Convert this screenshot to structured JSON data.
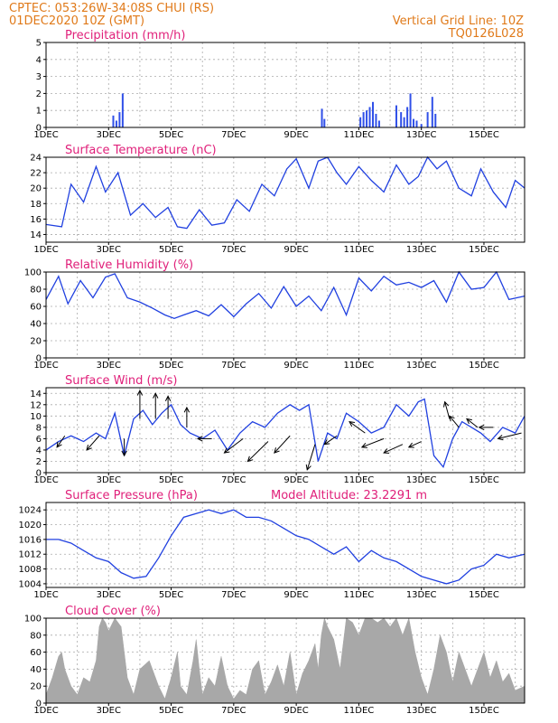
{
  "header": {
    "line1": "CPTEC:   053:26W-34:08S   CHUI (RS)",
    "line2": "01DEC2020 10Z (GMT)",
    "right1": "Vertical Grid Line: 10Z",
    "right2": "TQ0126L028"
  },
  "x_labels": [
    "1DEC",
    "3DEC",
    "5DEC",
    "7DEC",
    "9DEC",
    "11DEC",
    "13DEC",
    "15DEC"
  ],
  "colors": {
    "line": "#2040e0",
    "bar": "#3050e8",
    "cloud": "#a8a8a8",
    "title": "#e0207a",
    "header": "#e07a1a"
  },
  "chart_data": [
    {
      "id": "precip",
      "type": "bar",
      "title": "Precipitation (mm/h)",
      "ylim": [
        0,
        5
      ],
      "yticks": [
        0,
        1,
        2,
        3,
        4,
        5
      ],
      "xlim_days": [
        1,
        16.3
      ],
      "x": [
        3.15,
        3.25,
        3.35,
        3.45,
        9.82,
        9.9,
        11.05,
        11.15,
        11.25,
        11.35,
        11.45,
        11.55,
        11.65,
        12.2,
        12.35,
        12.45,
        12.55,
        12.65,
        12.75,
        12.85,
        13.0,
        13.2,
        13.35,
        13.45
      ],
      "values": [
        0.7,
        0.4,
        0.9,
        2.0,
        1.1,
        0.5,
        0.6,
        0.9,
        1.0,
        1.2,
        1.5,
        0.8,
        0.4,
        1.3,
        0.9,
        0.6,
        1.2,
        2.0,
        0.5,
        0.4,
        0.2,
        0.9,
        1.8,
        0.8
      ]
    },
    {
      "id": "temp",
      "type": "line",
      "title": "Surface Temperature (nC)",
      "ylim": [
        13,
        24
      ],
      "yticks": [
        14,
        16,
        18,
        20,
        22,
        24
      ],
      "x": [
        1.0,
        1.5,
        1.8,
        2.2,
        2.6,
        2.9,
        3.3,
        3.7,
        4.1,
        4.5,
        4.9,
        5.2,
        5.5,
        5.9,
        6.3,
        6.7,
        7.1,
        7.5,
        7.9,
        8.3,
        8.7,
        9.0,
        9.4,
        9.7,
        10.0,
        10.3,
        10.6,
        11.0,
        11.4,
        11.8,
        12.2,
        12.6,
        12.9,
        13.2,
        13.5,
        13.8,
        14.2,
        14.6,
        14.9,
        15.3,
        15.7,
        16.0,
        16.3
      ],
      "values": [
        15.3,
        15.0,
        20.5,
        18.2,
        22.8,
        19.5,
        22.0,
        16.5,
        18.0,
        16.2,
        17.5,
        15.0,
        14.8,
        17.2,
        15.2,
        15.5,
        18.5,
        17.0,
        20.5,
        19.0,
        22.5,
        23.8,
        20.0,
        23.5,
        24.0,
        22.0,
        20.5,
        22.8,
        21.0,
        19.5,
        23.0,
        20.5,
        21.5,
        24.0,
        22.5,
        23.5,
        20.0,
        19.0,
        22.5,
        19.5,
        17.5,
        21.0,
        20.0
      ]
    },
    {
      "id": "rh",
      "type": "line",
      "title": "Relative Humidity (%)",
      "ylim": [
        0,
        100
      ],
      "yticks": [
        0,
        20,
        40,
        60,
        80,
        100
      ],
      "x": [
        1.0,
        1.4,
        1.7,
        2.1,
        2.5,
        2.9,
        3.2,
        3.6,
        4.0,
        4.4,
        4.8,
        5.1,
        5.4,
        5.8,
        6.2,
        6.6,
        7.0,
        7.4,
        7.8,
        8.2,
        8.6,
        9.0,
        9.4,
        9.8,
        10.2,
        10.6,
        11.0,
        11.4,
        11.8,
        12.2,
        12.6,
        13.0,
        13.4,
        13.8,
        14.2,
        14.6,
        15.0,
        15.4,
        15.8,
        16.3
      ],
      "values": [
        68,
        95,
        63,
        90,
        70,
        94,
        98,
        70,
        65,
        58,
        50,
        46,
        50,
        55,
        49,
        62,
        48,
        63,
        75,
        58,
        83,
        60,
        72,
        55,
        82,
        50,
        93,
        78,
        95,
        85,
        88,
        82,
        90,
        65,
        100,
        80,
        82,
        100,
        68,
        72
      ]
    },
    {
      "id": "wind",
      "type": "line",
      "title": "Surface Wind (m/s)",
      "ylim": [
        0,
        15
      ],
      "yticks": [
        0,
        2,
        4,
        6,
        8,
        10,
        12,
        14
      ],
      "x": [
        1.0,
        1.4,
        1.8,
        2.2,
        2.6,
        2.9,
        3.2,
        3.5,
        3.8,
        4.1,
        4.4,
        4.7,
        5.0,
        5.3,
        5.6,
        6.0,
        6.4,
        6.8,
        7.2,
        7.6,
        8.0,
        8.4,
        8.8,
        9.1,
        9.4,
        9.7,
        10.0,
        10.3,
        10.6,
        11.0,
        11.4,
        11.8,
        12.2,
        12.6,
        12.9,
        13.1,
        13.4,
        13.7,
        14.0,
        14.3,
        14.6,
        14.9,
        15.2,
        15.6,
        16.0,
        16.3
      ],
      "values": [
        4.0,
        5.5,
        6.5,
        5.5,
        7.0,
        6.0,
        10.5,
        3.0,
        9.5,
        11.0,
        8.5,
        10.5,
        12.0,
        8.5,
        7.0,
        6.0,
        7.5,
        4.0,
        7.0,
        9.0,
        8.0,
        10.5,
        12.0,
        11.0,
        12.0,
        2.0,
        7.0,
        6.0,
        10.5,
        9.0,
        7.0,
        8.0,
        12.0,
        10.0,
        12.5,
        13.0,
        3.0,
        1.0,
        6.0,
        9.0,
        8.0,
        7.0,
        5.5,
        8.0,
        7.0,
        10.0
      ],
      "vectors": [
        {
          "x": 1.6,
          "y": 6.5,
          "dx": -0.5,
          "dy": -2.0
        },
        {
          "x": 2.7,
          "y": 6.5,
          "dx": -0.8,
          "dy": -2.5
        },
        {
          "x": 3.5,
          "y": 6.0,
          "dx": 0.0,
          "dy": -3.0
        },
        {
          "x": 4.0,
          "y": 9.5,
          "dx": 0.0,
          "dy": 5.0
        },
        {
          "x": 4.5,
          "y": 9.5,
          "dx": 0.0,
          "dy": 4.5
        },
        {
          "x": 4.9,
          "y": 9.5,
          "dx": 0.0,
          "dy": 4.0
        },
        {
          "x": 5.5,
          "y": 8.0,
          "dx": 0.0,
          "dy": 3.5
        },
        {
          "x": 6.3,
          "y": 6.0,
          "dx": -0.9,
          "dy": 0.0
        },
        {
          "x": 7.3,
          "y": 6.0,
          "dx": -1.2,
          "dy": -2.5
        },
        {
          "x": 8.1,
          "y": 5.5,
          "dx": -1.3,
          "dy": -3.5
        },
        {
          "x": 8.8,
          "y": 6.5,
          "dx": -1.0,
          "dy": -3.0
        },
        {
          "x": 9.6,
          "y": 5.0,
          "dx": -0.5,
          "dy": -4.5
        },
        {
          "x": 10.3,
          "y": 6.5,
          "dx": -0.8,
          "dy": -1.5
        },
        {
          "x": 11.2,
          "y": 7.0,
          "dx": -1.0,
          "dy": 2.0
        },
        {
          "x": 11.8,
          "y": 6.0,
          "dx": -1.4,
          "dy": -1.5
        },
        {
          "x": 12.4,
          "y": 5.0,
          "dx": -1.2,
          "dy": -1.5
        },
        {
          "x": 13.0,
          "y": 5.5,
          "dx": -0.8,
          "dy": -1.0
        },
        {
          "x": 13.9,
          "y": 9.5,
          "dx": -0.3,
          "dy": 3.0
        },
        {
          "x": 14.2,
          "y": 8.0,
          "dx": -0.6,
          "dy": 2.0
        },
        {
          "x": 14.8,
          "y": 8.0,
          "dx": -0.7,
          "dy": 1.5
        },
        {
          "x": 15.3,
          "y": 8.0,
          "dx": -0.9,
          "dy": 0.0
        },
        {
          "x": 16.2,
          "y": 7.0,
          "dx": -1.5,
          "dy": -1.0
        }
      ]
    },
    {
      "id": "press",
      "type": "line",
      "title": "Surface Pressure (hPa)",
      "extra_title": "Model Altitude: 23.2291 m",
      "ylim": [
        1003,
        1026
      ],
      "yticks": [
        1004,
        1008,
        1012,
        1016,
        1020,
        1024
      ],
      "x": [
        1.0,
        1.4,
        1.8,
        2.2,
        2.6,
        3.0,
        3.4,
        3.8,
        4.2,
        4.6,
        5.0,
        5.4,
        5.8,
        6.2,
        6.6,
        7.0,
        7.4,
        7.8,
        8.2,
        8.6,
        9.0,
        9.4,
        9.8,
        10.2,
        10.6,
        11.0,
        11.4,
        11.8,
        12.2,
        12.6,
        13.0,
        13.4,
        13.8,
        14.2,
        14.6,
        15.0,
        15.4,
        15.8,
        16.3
      ],
      "values": [
        1016,
        1016,
        1015,
        1013,
        1011,
        1010,
        1007,
        1005.5,
        1006,
        1011,
        1017,
        1022,
        1023,
        1024,
        1023,
        1024,
        1022,
        1022,
        1021,
        1019,
        1017,
        1016,
        1014,
        1012,
        1014,
        1010,
        1013,
        1011,
        1010,
        1008,
        1006,
        1005,
        1004,
        1005,
        1008,
        1009,
        1012,
        1011,
        1012
      ]
    },
    {
      "id": "cloud",
      "type": "area",
      "title": "Cloud Cover (%)",
      "ylim": [
        0,
        100
      ],
      "yticks": [
        0,
        20,
        40,
        60,
        80,
        100
      ],
      "x": [
        1.0,
        1.2,
        1.4,
        1.5,
        1.6,
        1.8,
        2.0,
        2.2,
        2.4,
        2.6,
        2.7,
        2.8,
        2.9,
        3.0,
        3.2,
        3.4,
        3.5,
        3.6,
        3.8,
        4.0,
        4.3,
        4.6,
        4.8,
        5.0,
        5.1,
        5.2,
        5.3,
        5.5,
        5.7,
        5.8,
        5.9,
        6.0,
        6.2,
        6.4,
        6.6,
        6.8,
        7.0,
        7.2,
        7.4,
        7.6,
        7.8,
        8.0,
        8.2,
        8.4,
        8.6,
        8.8,
        9.0,
        9.2,
        9.4,
        9.6,
        9.7,
        9.8,
        9.9,
        10.0,
        10.2,
        10.4,
        10.6,
        10.8,
        11.0,
        11.2,
        11.4,
        11.6,
        11.8,
        12.0,
        12.2,
        12.4,
        12.6,
        12.8,
        13.0,
        13.2,
        13.4,
        13.6,
        13.8,
        14.0,
        14.2,
        14.4,
        14.6,
        14.8,
        15.0,
        15.2,
        15.4,
        15.6,
        15.8,
        16.0,
        16.3
      ],
      "values": [
        10,
        30,
        55,
        60,
        40,
        20,
        10,
        30,
        25,
        50,
        90,
        100,
        95,
        85,
        100,
        90,
        60,
        30,
        10,
        40,
        50,
        20,
        5,
        30,
        45,
        60,
        20,
        10,
        50,
        75,
        40,
        10,
        30,
        20,
        55,
        20,
        5,
        15,
        10,
        40,
        50,
        10,
        25,
        45,
        20,
        60,
        10,
        35,
        50,
        70,
        40,
        80,
        100,
        90,
        75,
        40,
        100,
        95,
        80,
        100,
        100,
        95,
        100,
        90,
        100,
        80,
        100,
        60,
        30,
        10,
        40,
        80,
        60,
        25,
        60,
        40,
        20,
        40,
        60,
        30,
        50,
        25,
        35,
        15,
        20
      ]
    }
  ]
}
